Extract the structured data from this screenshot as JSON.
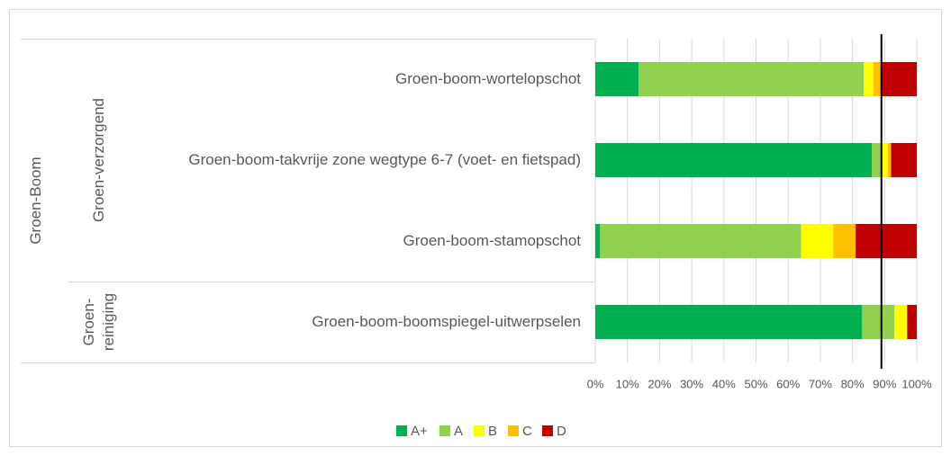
{
  "chart_data": {
    "type": "bar",
    "orientation": "horizontal",
    "stacked": true,
    "category_tree": {
      "name": "Groen-Boom",
      "groups": [
        {
          "name": "Groen-verzorgend",
          "categories": [
            "Groen-boom-wortelopschot",
            "Groen-boom-takvrije zone wegtype 6-7 (voet- en fietspad)",
            "Groen-boom-stamopschot"
          ]
        },
        {
          "name": "Groen-reiniging",
          "categories": [
            "Groen-boom-boomspiegel-uitwerpselen"
          ]
        }
      ]
    },
    "series": [
      {
        "name": "A+",
        "color": "#00b050",
        "values": [
          13.5,
          86,
          1.5,
          83
        ]
      },
      {
        "name": "A",
        "color": "#92d050",
        "values": [
          70,
          3,
          62.5,
          10
        ]
      },
      {
        "name": "B",
        "color": "#ffff00",
        "values": [
          3,
          2,
          10,
          4
        ]
      },
      {
        "name": "C",
        "color": "#ffc000",
        "values": [
          2.5,
          1,
          7,
          0
        ]
      },
      {
        "name": "D",
        "color": "#c00000",
        "values": [
          11,
          8,
          19,
          3
        ]
      }
    ],
    "xlim": [
      0,
      100
    ],
    "xticks": [
      {
        "value": 0,
        "label": "0%"
      },
      {
        "value": 10,
        "label": "10%"
      },
      {
        "value": 20,
        "label": "20%"
      },
      {
        "value": 30,
        "label": "30%"
      },
      {
        "value": 40,
        "label": "40%"
      },
      {
        "value": 50,
        "label": "50%"
      },
      {
        "value": 60,
        "label": "60%"
      },
      {
        "value": 70,
        "label": "70%"
      },
      {
        "value": 80,
        "label": "80%"
      },
      {
        "value": 90,
        "label": "90%"
      },
      {
        "value": 100,
        "label": "100%"
      }
    ],
    "grid": true,
    "reference_line": 89,
    "legend": "bottom"
  }
}
